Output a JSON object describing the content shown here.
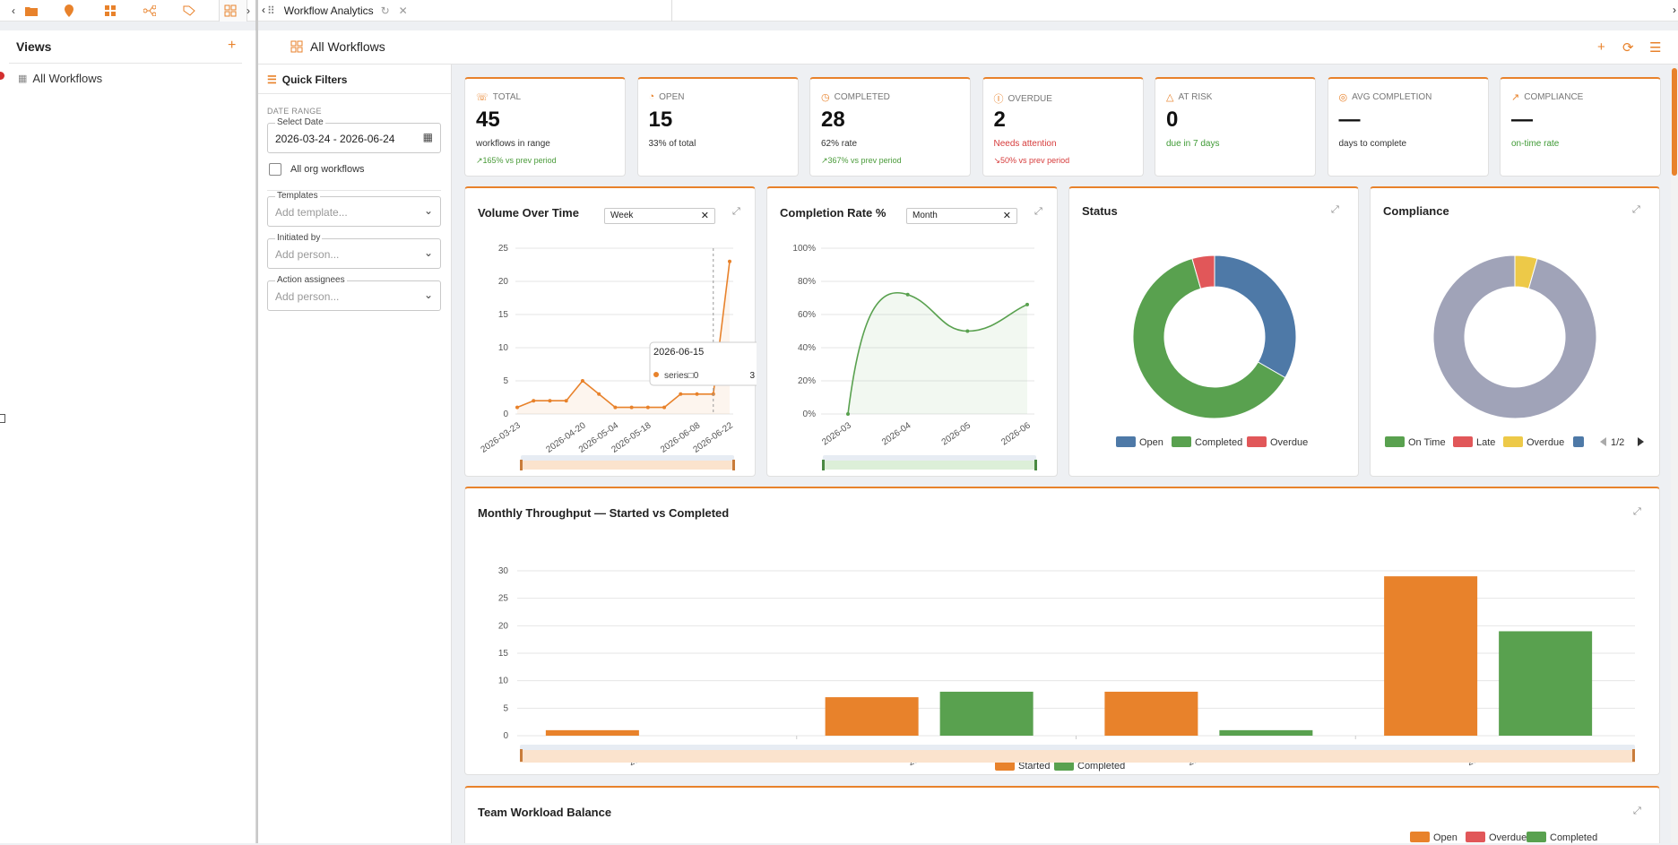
{
  "tabs": {
    "workflow_tab_label": "Workflow Analytics",
    "nav_left": "‹",
    "nav_right": "›"
  },
  "views": {
    "title": "Views",
    "add": "+",
    "items": [
      {
        "label": "All Workflows"
      }
    ]
  },
  "header": {
    "title": "All Workflows"
  },
  "filters": {
    "title": "Quick Filters",
    "date_range_label": "DATE RANGE",
    "select_date_legend": "Select Date",
    "date_value": "2026-03-24 - 2026-06-24",
    "all_org_label": "All org workflows",
    "templates_legend": "Templates",
    "templates_placeholder": "Add template...",
    "initiated_legend": "Initiated by",
    "initiated_placeholder": "Add person...",
    "assignees_legend": "Action assignees",
    "assignees_placeholder": "Add person..."
  },
  "kpis": [
    {
      "label": "TOTAL",
      "value": "45",
      "sub": "workflows in range",
      "trend": "↗165% vs prev period"
    },
    {
      "label": "OPEN",
      "value": "15",
      "sub": "33% of total",
      "trend": ""
    },
    {
      "label": "COMPLETED",
      "value": "28",
      "sub": "62% rate",
      "trend": "↗367% vs prev period"
    },
    {
      "label": "OVERDUE",
      "value": "2",
      "sub": "Needs attention",
      "trend": "↘50% vs prev period"
    },
    {
      "label": "AT RISK",
      "value": "0",
      "sub": "due in 7 days",
      "trend": ""
    },
    {
      "label": "AVG COMPLETION",
      "value": "—",
      "sub": "days to complete",
      "trend": ""
    },
    {
      "label": "COMPLIANCE",
      "value": "—",
      "sub": "on-time rate",
      "trend": ""
    }
  ],
  "colors": {
    "accent": "#e8822b",
    "open": "#4e79a7",
    "completed": "#59a14f",
    "overdue": "#e15759",
    "late": "#e15759",
    "on_time": "#59a14f",
    "overdue_compliance": "#edc948",
    "gray": "#a0a3b8"
  },
  "charts": {
    "volume": {
      "title": "Volume Over Time",
      "select": "Week",
      "tooltip_date": "2026-06-15",
      "tooltip_series": "series□0",
      "tooltip_value": "3"
    },
    "completion": {
      "title": "Completion Rate %",
      "select": "Month"
    },
    "status": {
      "title": "Status"
    },
    "compliance": {
      "title": "Compliance",
      "pager": "1/2"
    },
    "throughput": {
      "title": "Monthly Throughput — Started vs Completed"
    },
    "team": {
      "title": "Team Workload Balance"
    }
  },
  "chart_data": [
    {
      "type": "line",
      "title": "Volume Over Time",
      "x": [
        "2026-03-23",
        "2026-03-30",
        "2026-04-06",
        "2026-04-13",
        "2026-04-20",
        "2026-04-27",
        "2026-05-04",
        "2026-05-11",
        "2026-05-18",
        "2026-05-25",
        "2026-06-01",
        "2026-06-08",
        "2026-06-15",
        "2026-06-22"
      ],
      "xticks": [
        "2026-03-23",
        "2026-04-20",
        "2026-05-04",
        "2026-05-18",
        "2026-06-08",
        "2026-06-22"
      ],
      "series": [
        {
          "values": [
            1,
            2,
            2,
            2,
            5,
            3,
            1,
            1,
            1,
            1,
            3,
            3,
            3,
            23
          ]
        }
      ],
      "ylim": [
        0,
        25
      ],
      "yticks": [
        0,
        5,
        10,
        15,
        20,
        25
      ]
    },
    {
      "type": "line",
      "title": "Completion Rate %",
      "x": [
        "2026-03",
        "2026-04",
        "2026-05",
        "2026-06"
      ],
      "series": [
        {
          "values": [
            0,
            72,
            50,
            66
          ]
        }
      ],
      "ylim": [
        0,
        100
      ],
      "yticks": [
        "0%",
        "20%",
        "40%",
        "60%",
        "80%",
        "100%"
      ]
    },
    {
      "type": "pie",
      "title": "Status",
      "labels": [
        "Open",
        "Completed",
        "Overdue"
      ],
      "values": [
        15,
        28,
        2
      ]
    },
    {
      "type": "pie",
      "title": "Compliance",
      "labels": [
        "On Time",
        "Late",
        "Overdue"
      ],
      "values": [
        0,
        0,
        2
      ],
      "remainder": 43
    },
    {
      "type": "bar",
      "title": "Monthly Throughput — Started vs Completed",
      "categories": [
        "2026-03",
        "2026-04",
        "2026-05",
        "2026-06"
      ],
      "series": [
        {
          "name": "Started",
          "values": [
            1,
            7,
            8,
            29
          ]
        },
        {
          "name": "Completed",
          "values": [
            0,
            8,
            1,
            19
          ]
        }
      ],
      "ylim": [
        0,
        30
      ],
      "yticks": [
        0,
        5,
        10,
        15,
        20,
        25,
        30
      ]
    },
    {
      "type": "bar",
      "title": "Team Workload Balance",
      "legend": [
        "Open",
        "Overdue",
        "Completed"
      ]
    }
  ]
}
